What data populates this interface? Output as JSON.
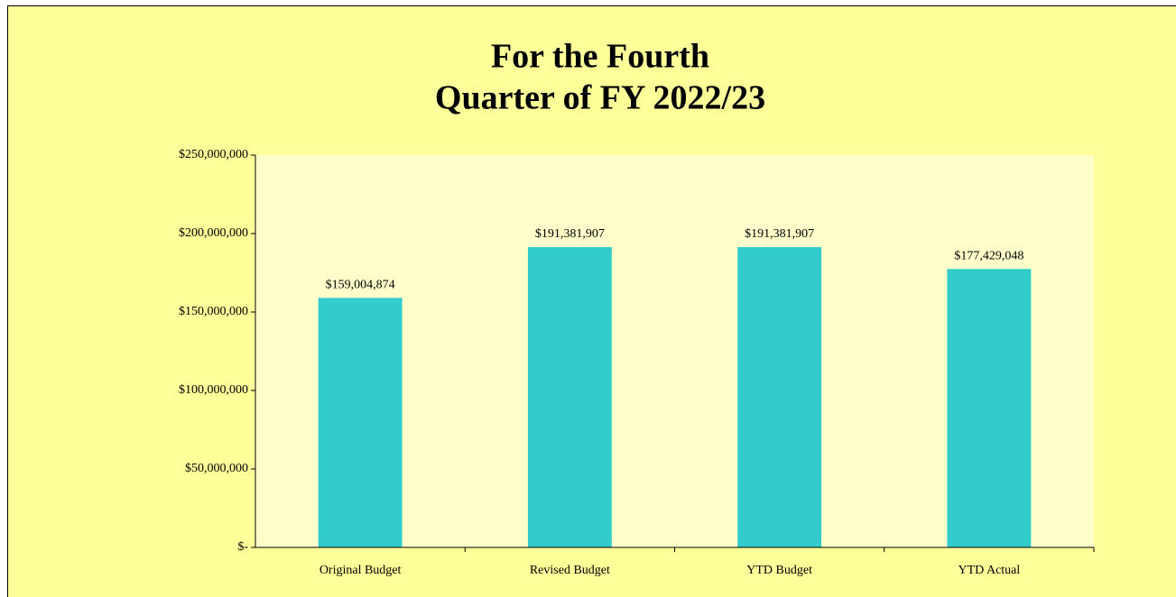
{
  "chart_data": {
    "type": "bar",
    "title": [
      "For the Fourth",
      "Quarter of FY 2022/23"
    ],
    "categories": [
      "Original Budget",
      "Revised Budget",
      "YTD Budget",
      "YTD Actual"
    ],
    "values": [
      159004874,
      191381907,
      191381907,
      177429048
    ],
    "value_labels": [
      "$159,004,874",
      "$191,381,907",
      "$191,381,907",
      "$177,429,048"
    ],
    "color": "#33cccc",
    "ylim": [
      0,
      250000000
    ],
    "yticks": [
      {
        "value": 0,
        "label": "$-"
      },
      {
        "value": 50000000,
        "label": "$50,000,000"
      },
      {
        "value": 100000000,
        "label": "$100,000,000"
      },
      {
        "value": 150000000,
        "label": "$150,000,000"
      },
      {
        "value": 200000000,
        "label": "$200,000,000"
      },
      {
        "value": 250000000,
        "label": "$250,000,000"
      }
    ],
    "grid": false
  }
}
